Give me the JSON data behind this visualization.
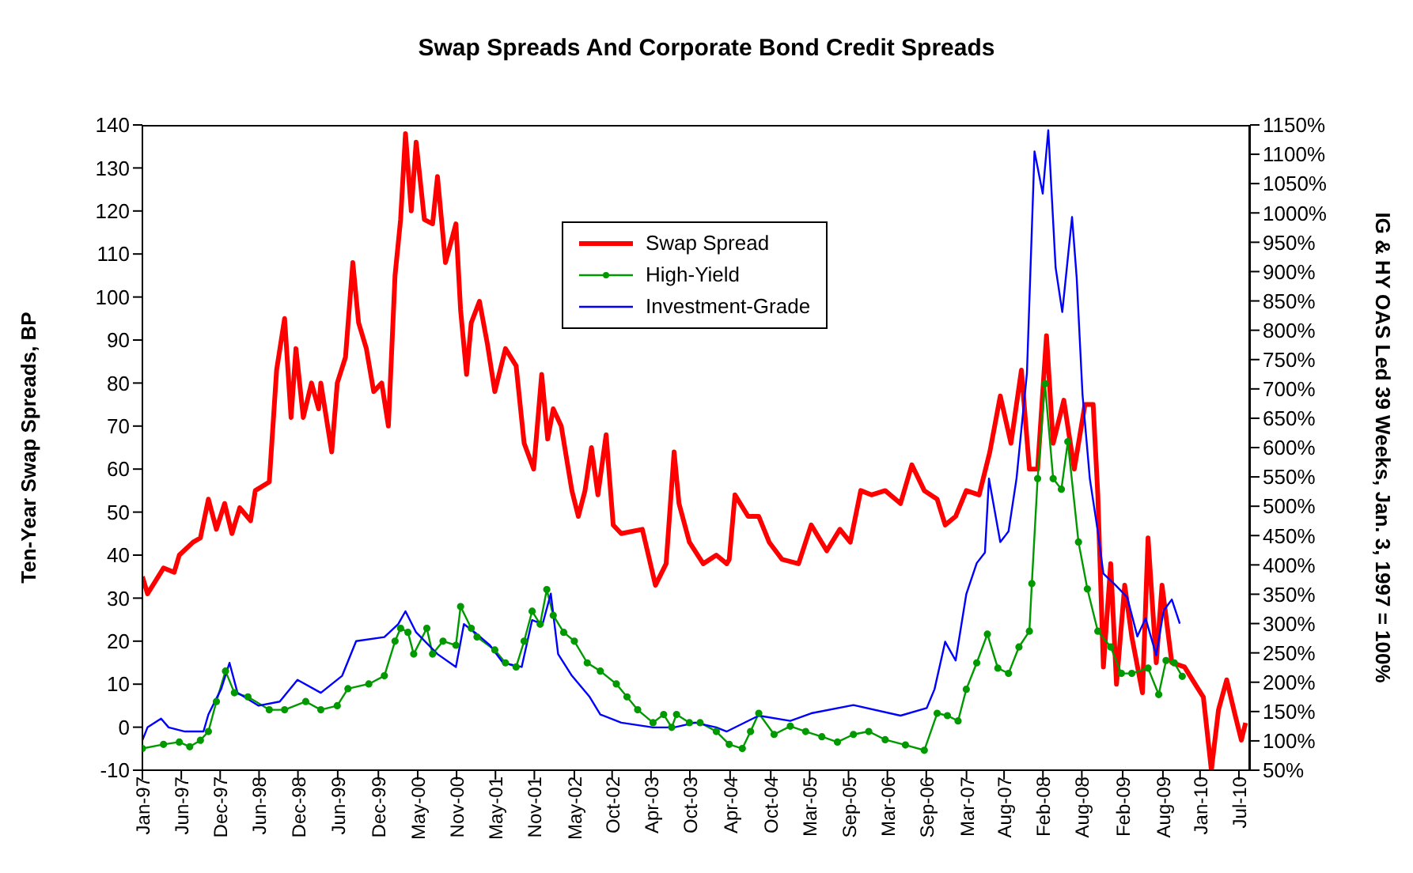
{
  "chart_data": {
    "type": "line",
    "title": "Swap Spreads And Corporate Bond Credit Spreads",
    "ylabel": "Ten-Year Swap Spreads, BP",
    "y2label": "IG & HY OAS Led 39 Weeks, Jan. 3, 1997 = 100%",
    "legend": "top",
    "xlim": [
      "1997-01-03",
      "2010-08-28"
    ],
    "xticks": [
      {
        "value": "1997-01-03",
        "label": "Jan-97"
      },
      {
        "value": "1997-06-27",
        "label": "Jun-97"
      },
      {
        "value": "1997-12-19",
        "label": "Dec-97"
      },
      {
        "value": "1998-06-12",
        "label": "Jun-98"
      },
      {
        "value": "1998-12-04",
        "label": "Dec-98"
      },
      {
        "value": "1999-06-01",
        "label": "Jun-99"
      },
      {
        "value": "1999-12-01",
        "label": "Dec-99"
      },
      {
        "value": "2000-05-26",
        "label": "May-00"
      },
      {
        "value": "2000-11-17",
        "label": "Nov-00"
      },
      {
        "value": "2001-05-11",
        "label": "May-01"
      },
      {
        "value": "2001-11-02",
        "label": "Nov-01"
      },
      {
        "value": "2002-05-01",
        "label": "May-02"
      },
      {
        "value": "2002-10-18",
        "label": "Oct-02"
      },
      {
        "value": "2003-04-11",
        "label": "Apr-03"
      },
      {
        "value": "2003-10-03",
        "label": "Oct-03"
      },
      {
        "value": "2004-04-01",
        "label": "Apr-04"
      },
      {
        "value": "2004-10-01",
        "label": "Oct-04"
      },
      {
        "value": "2005-03-25",
        "label": "Mar-05"
      },
      {
        "value": "2005-09-16",
        "label": "Sep-05"
      },
      {
        "value": "2006-03-10",
        "label": "Mar-06"
      },
      {
        "value": "2006-09-01",
        "label": "Sep-06"
      },
      {
        "value": "2007-03-01",
        "label": "Mar-07"
      },
      {
        "value": "2007-08-17",
        "label": "Aug-07"
      },
      {
        "value": "2008-02-08",
        "label": "Feb-08"
      },
      {
        "value": "2008-08-01",
        "label": "Aug-08"
      },
      {
        "value": "2009-02-01",
        "label": "Feb-09"
      },
      {
        "value": "2009-08-01",
        "label": "Aug-09"
      },
      {
        "value": "2010-01-15",
        "label": "Jan-10"
      },
      {
        "value": "2010-07-09",
        "label": "Jul-10"
      }
    ],
    "ylim": [
      -10,
      140
    ],
    "yticks": [
      -10,
      0,
      10,
      20,
      30,
      40,
      50,
      60,
      70,
      80,
      90,
      100,
      110,
      120,
      130,
      140
    ],
    "y2lim": [
      50,
      1150
    ],
    "y2ticks": [
      {
        "value": 50,
        "label": "50%"
      },
      {
        "value": 100,
        "label": "100%"
      },
      {
        "value": 150,
        "label": "150%"
      },
      {
        "value": 200,
        "label": "200%"
      },
      {
        "value": 250,
        "label": "250%"
      },
      {
        "value": 300,
        "label": "300%"
      },
      {
        "value": 350,
        "label": "350%"
      },
      {
        "value": 400,
        "label": "400%"
      },
      {
        "value": 450,
        "label": "450%"
      },
      {
        "value": 500,
        "label": "500%"
      },
      {
        "value": 550,
        "label": "550%"
      },
      {
        "value": 600,
        "label": "600%"
      },
      {
        "value": 650,
        "label": "650%"
      },
      {
        "value": 700,
        "label": "700%"
      },
      {
        "value": 750,
        "label": "750%"
      },
      {
        "value": 800,
        "label": "800%"
      },
      {
        "value": 850,
        "label": "850%"
      },
      {
        "value": 900,
        "label": "900%"
      },
      {
        "value": 950,
        "label": "950%"
      },
      {
        "value": 1000,
        "label": "1000%"
      },
      {
        "value": 1050,
        "label": "1050%"
      },
      {
        "value": 1100,
        "label": "1100%"
      },
      {
        "value": 1150,
        "label": "1150%"
      }
    ],
    "series": [
      {
        "name": "Swap Spread",
        "color": "#ff0000",
        "marker": "none",
        "x": [
          "1997-01-03",
          "1997-01-26",
          "1997-04-08",
          "1997-05-26",
          "1997-06-18",
          "1997-08-19",
          "1997-09-21",
          "1997-10-27",
          "1997-12-02",
          "1998-01-08",
          "1998-02-10",
          "1998-03-17",
          "1998-05-05",
          "1998-05-26",
          "1998-07-28",
          "1998-08-30",
          "1998-10-05",
          "1998-11-03",
          "1998-11-25",
          "1998-12-28",
          "1999-02-03",
          "1999-03-07",
          "1999-03-17",
          "1999-05-05",
          "1999-05-30",
          "1999-07-06",
          "1999-08-08",
          "1999-09-03",
          "1999-10-08",
          "1999-11-10",
          "1999-12-16",
          "2000-01-15",
          "2000-02-14",
          "2000-03-10",
          "2000-04-01",
          "2000-04-27",
          "2000-05-19",
          "2000-06-25",
          "2000-08-01",
          "2000-08-23",
          "2000-09-28",
          "2000-11-14",
          "2000-12-05",
          "2001-01-01",
          "2001-01-22",
          "2001-02-28",
          "2001-04-05",
          "2001-05-08",
          "2001-06-25",
          "2001-08-12",
          "2001-09-17",
          "2001-10-30",
          "2001-12-05",
          "2002-01-01",
          "2002-01-26",
          "2002-03-03",
          "2002-04-20",
          "2002-05-19",
          "2002-06-18",
          "2002-07-17",
          "2002-08-15",
          "2002-09-21",
          "2002-10-23",
          "2002-11-28",
          "2003-03-03",
          "2003-05-01",
          "2003-06-18",
          "2003-07-24",
          "2003-08-15",
          "2003-10-01",
          "2003-12-02",
          "2004-01-30",
          "2004-03-17",
          "2004-03-28",
          "2004-04-23",
          "2004-06-21",
          "2004-08-08",
          "2004-09-24",
          "2004-11-21",
          "2005-02-03",
          "2005-04-01",
          "2005-06-10",
          "2005-08-08",
          "2005-09-24",
          "2005-11-10",
          "2005-12-28",
          "2006-02-28",
          "2006-05-08",
          "2006-06-28",
          "2006-08-23",
          "2006-10-20",
          "2006-11-25",
          "2007-01-11",
          "2007-02-28",
          "2007-04-27",
          "2007-06-14",
          "2007-07-31",
          "2007-09-17",
          "2007-11-03",
          "2007-12-09",
          "2008-01-15",
          "2008-02-24",
          "2008-03-25",
          "2008-05-12",
          "2008-06-28",
          "2008-08-15",
          "2008-09-21",
          "2008-10-12",
          "2008-11-06",
          "2008-12-09",
          "2009-01-04",
          "2009-02-10",
          "2009-03-14",
          "2009-05-01",
          "2009-05-26",
          "2009-07-02",
          "2009-07-28",
          "2009-09-10",
          "2009-11-06",
          "2009-12-24",
          "2010-01-30",
          "2010-03-07",
          "2010-04-08",
          "2010-05-15",
          "2010-06-21",
          "2010-07-20",
          "2010-08-08"
        ],
        "values": [
          35,
          31,
          37,
          36,
          40,
          43,
          44,
          53,
          46,
          52,
          45,
          51,
          48,
          55,
          57,
          83,
          95,
          72,
          88,
          72,
          80,
          74,
          80,
          64,
          80,
          86,
          108,
          94,
          88,
          78,
          80,
          70,
          105,
          118,
          138,
          120,
          136,
          118,
          117,
          128,
          108,
          117,
          97,
          82,
          94,
          99,
          89,
          78,
          88,
          84,
          66,
          60,
          82,
          67,
          74,
          70,
          55,
          49,
          55,
          65,
          54,
          68,
          47,
          45,
          46,
          33,
          38,
          64,
          52,
          43,
          38,
          40,
          38,
          39,
          54,
          49,
          49,
          43,
          39,
          38,
          47,
          41,
          46,
          43,
          55,
          54,
          55,
          52,
          61,
          55,
          53,
          47,
          49,
          55,
          54,
          64,
          77,
          66,
          83,
          60,
          60,
          91,
          66,
          76,
          60,
          75,
          75,
          54,
          14,
          38,
          10,
          33,
          21,
          8,
          44,
          15,
          33,
          15,
          14,
          10,
          7,
          -10,
          4,
          11,
          3,
          -3,
          1
        ]
      },
      {
        "name": "High-Yield",
        "color": "#009900",
        "axis": "y2",
        "marker": "circle",
        "x": [
          "1997-01-03",
          "1997-04-08",
          "1997-06-18",
          "1997-08-04",
          "1997-09-21",
          "1997-10-27",
          "1997-12-02",
          "1998-01-12",
          "1998-02-21",
          "1998-04-23",
          "1998-07-28",
          "1998-10-05",
          "1999-01-08",
          "1999-03-17",
          "1999-05-30",
          "1999-07-17",
          "1999-10-19",
          "1999-12-28",
          "2000-02-14",
          "2000-03-10",
          "2000-04-12",
          "2000-05-08",
          "2000-07-06",
          "2000-08-01",
          "2000-09-17",
          "2000-11-14",
          "2000-12-05",
          "2001-01-22",
          "2001-02-17",
          "2001-05-08",
          "2001-06-25",
          "2001-08-12",
          "2001-09-17",
          "2001-10-23",
          "2001-11-28",
          "2001-12-28",
          "2002-01-26",
          "2002-03-14",
          "2002-05-01",
          "2002-06-28",
          "2002-08-26",
          "2002-11-06",
          "2002-12-24",
          "2003-02-10",
          "2003-04-20",
          "2003-06-07",
          "2003-07-13",
          "2003-08-04",
          "2003-10-01",
          "2003-11-18",
          "2004-01-30",
          "2004-03-28",
          "2004-05-26",
          "2004-07-02",
          "2004-08-08",
          "2004-10-16",
          "2004-12-28",
          "2005-03-07",
          "2005-05-19",
          "2005-07-28",
          "2005-10-08",
          "2005-12-16",
          "2006-02-28",
          "2006-05-30",
          "2006-08-23",
          "2006-10-20",
          "2006-12-05",
          "2007-01-22",
          "2007-02-28",
          "2007-04-16",
          "2007-06-03",
          "2007-07-20",
          "2007-09-06",
          "2007-10-23",
          "2007-12-09",
          "2007-12-20",
          "2008-01-15",
          "2008-02-17",
          "2008-03-25",
          "2008-05-01",
          "2008-05-30",
          "2008-07-17",
          "2008-08-26",
          "2008-10-12",
          "2008-12-09",
          "2009-01-26",
          "2009-03-14",
          "2009-05-26",
          "2009-07-13",
          "2009-08-15",
          "2009-09-21",
          "2009-10-27"
        ],
        "values": [
          87,
          94,
          98,
          90,
          101,
          116,
          167,
          219,
          182,
          175,
          153,
          153,
          167,
          153,
          160,
          189,
          197,
          211,
          270,
          292,
          285,
          248,
          292,
          248,
          270,
          263,
          329,
          292,
          277,
          255,
          233,
          226,
          270,
          321,
          299,
          358,
          314,
          285,
          270,
          233,
          219,
          197,
          175,
          153,
          131,
          145,
          123,
          145,
          131,
          131,
          116,
          94,
          87,
          116,
          147,
          111,
          125,
          116,
          107,
          98,
          111,
          116,
          102,
          93,
          84,
          147,
          143,
          134,
          188,
          233,
          282,
          224,
          215,
          260,
          287,
          368,
          547,
          709,
          547,
          529,
          610,
          439,
          359,
          287,
          260,
          215,
          215,
          224,
          179,
          237,
          233,
          210
        ]
      },
      {
        "name": "Investment-Grade",
        "color": "#0000ff",
        "axis": "y2",
        "marker": "none",
        "x": [
          "1997-01-03",
          "1997-01-26",
          "1997-03-28",
          "1997-05-01",
          "1997-07-13",
          "1997-10-05",
          "1997-10-27",
          "1997-12-24",
          "1998-01-30",
          "1998-03-07",
          "1998-06-10",
          "1998-09-13",
          "1998-12-02",
          "1999-03-17",
          "1999-06-21",
          "1999-08-23",
          "1999-12-28",
          "2000-02-28",
          "2000-04-01",
          "2000-05-19",
          "2000-08-23",
          "2000-11-14",
          "2000-12-20",
          "2001-02-07",
          "2001-04-16",
          "2001-06-14",
          "2001-09-06",
          "2001-10-23",
          "2001-12-09",
          "2002-01-15",
          "2002-02-17",
          "2002-04-20",
          "2002-07-09",
          "2002-08-26",
          "2002-11-28",
          "2003-04-20",
          "2003-07-24",
          "2003-10-27",
          "2004-01-30",
          "2004-03-17",
          "2004-08-08",
          "2004-12-28",
          "2005-04-01",
          "2005-10-08",
          "2006-05-08",
          "2006-09-03",
          "2006-10-08",
          "2006-11-25",
          "2007-01-11",
          "2007-02-28",
          "2007-04-16",
          "2007-05-23",
          "2007-06-10",
          "2007-07-31",
          "2007-09-06",
          "2007-10-12",
          "2007-11-28",
          "2008-01-01",
          "2008-02-07",
          "2008-03-03",
          "2008-04-05",
          "2008-05-05",
          "2008-06-18",
          "2008-07-09",
          "2008-08-04",
          "2008-09-06",
          "2008-10-12",
          "2008-11-06",
          "2008-12-24",
          "2009-02-21",
          "2009-04-08",
          "2009-05-15",
          "2009-07-02",
          "2009-08-04",
          "2009-09-10",
          "2009-10-16"
        ],
        "values": [
          101,
          123,
          138,
          123,
          116,
          116,
          145,
          189,
          233,
          182,
          160,
          167,
          204,
          182,
          211,
          270,
          277,
          299,
          321,
          285,
          248,
          226,
          299,
          285,
          263,
          233,
          226,
          306,
          299,
          351,
          248,
          211,
          175,
          145,
          131,
          123,
          123,
          131,
          123,
          116,
          143,
          134,
          147,
          161,
          143,
          156,
          188,
          269,
          237,
          350,
          403,
          421,
          547,
          439,
          457,
          547,
          727,
          1105,
          1033,
          1141,
          907,
          831,
          993,
          889,
          691,
          547,
          457,
          385,
          368,
          345,
          278,
          309,
          246,
          322,
          341,
          300
        ]
      }
    ]
  }
}
